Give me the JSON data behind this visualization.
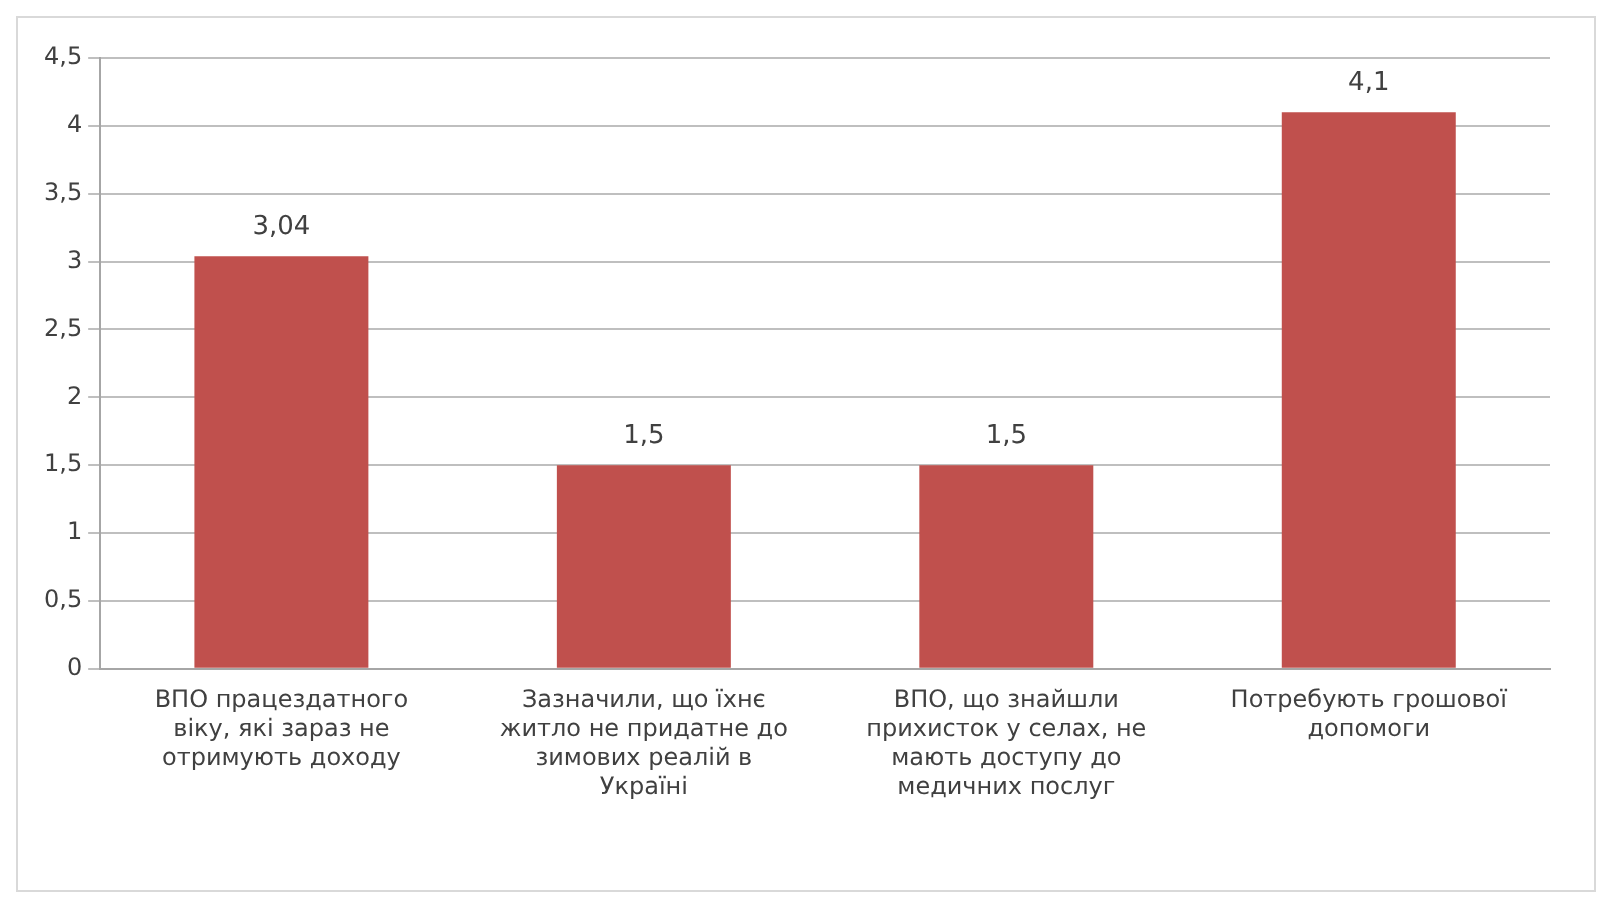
{
  "chart_data": {
    "type": "bar",
    "categories": [
      "ВПО працездатного віку, які зараз не отримують доходу",
      "Зазначили, що їхнє житло не придатне до зимових реалій в Україні",
      "ВПО, що знайшли прихисток у селах, не мають доступу до медичних послуг",
      "Потребують грошової допомоги"
    ],
    "values": [
      3.04,
      1.5,
      1.5,
      4.1
    ],
    "value_labels": [
      "3,04",
      "1,5",
      "1,5",
      "4,1"
    ],
    "color": "#c0504d",
    "ylim": [
      0,
      4.5
    ],
    "yticks": [
      0,
      {
        "value": 0.5,
        "label": "0,5"
      },
      1,
      {
        "value": 1.5,
        "label": "1,5"
      },
      2,
      {
        "value": 2.5,
        "label": "2,5"
      },
      3,
      {
        "value": 3.5,
        "label": "3,5"
      },
      4,
      {
        "value": 4.5,
        "label": "4,5"
      }
    ],
    "grid": "y",
    "legend": false
  }
}
